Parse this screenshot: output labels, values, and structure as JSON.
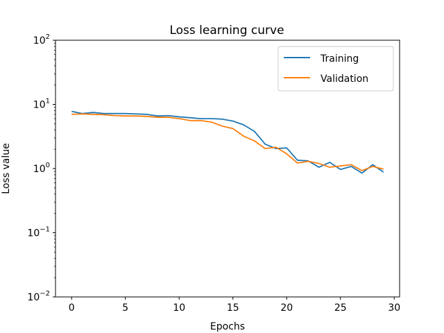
{
  "chart_data": {
    "type": "line",
    "title": "Loss learning curve",
    "xlabel": "Epochs",
    "ylabel": "Loss value",
    "yscale": "log",
    "xlim": [
      -1.5,
      30.5
    ],
    "ylim": [
      0.01,
      100
    ],
    "grid": false,
    "legend_position": "top-right",
    "x_ticks": [
      0,
      5,
      10,
      15,
      20,
      25,
      30
    ],
    "x_tick_labels": [
      "0",
      "5",
      "10",
      "15",
      "20",
      "25",
      "30"
    ],
    "y_ticks": [
      {
        "value": 0.01,
        "base": "10",
        "exp": "−2"
      },
      {
        "value": 0.1,
        "base": "10",
        "exp": "−1"
      },
      {
        "value": 1,
        "base": "10",
        "exp": "0"
      },
      {
        "value": 10,
        "base": "10",
        "exp": "1"
      },
      {
        "value": 100,
        "base": "10",
        "exp": "2"
      }
    ],
    "x": [
      0,
      1,
      2,
      3,
      4,
      5,
      6,
      7,
      8,
      9,
      10,
      11,
      12,
      13,
      14,
      15,
      16,
      17,
      18,
      19,
      20,
      21,
      22,
      23,
      24,
      25,
      26,
      27,
      28,
      29
    ],
    "series": [
      {
        "name": "Training",
        "color": "#1f77b4",
        "values": [
          7.8,
          7.2,
          7.5,
          7.2,
          7.2,
          7.2,
          7.1,
          7.0,
          6.6,
          6.7,
          6.4,
          6.2,
          6.0,
          6.0,
          5.9,
          5.5,
          4.8,
          3.8,
          2.4,
          2.05,
          2.1,
          1.35,
          1.32,
          1.05,
          1.25,
          0.97,
          1.08,
          0.85,
          1.15,
          0.88
        ]
      },
      {
        "name": "Validation",
        "color": "#ff7f0e",
        "values": [
          7.0,
          7.1,
          7.0,
          6.9,
          6.7,
          6.6,
          6.6,
          6.5,
          6.3,
          6.3,
          6.0,
          5.6,
          5.6,
          5.3,
          4.6,
          4.2,
          3.2,
          2.7,
          2.05,
          2.15,
          1.7,
          1.22,
          1.3,
          1.2,
          1.05,
          1.1,
          1.15,
          0.93,
          1.08,
          0.98
        ]
      }
    ]
  }
}
